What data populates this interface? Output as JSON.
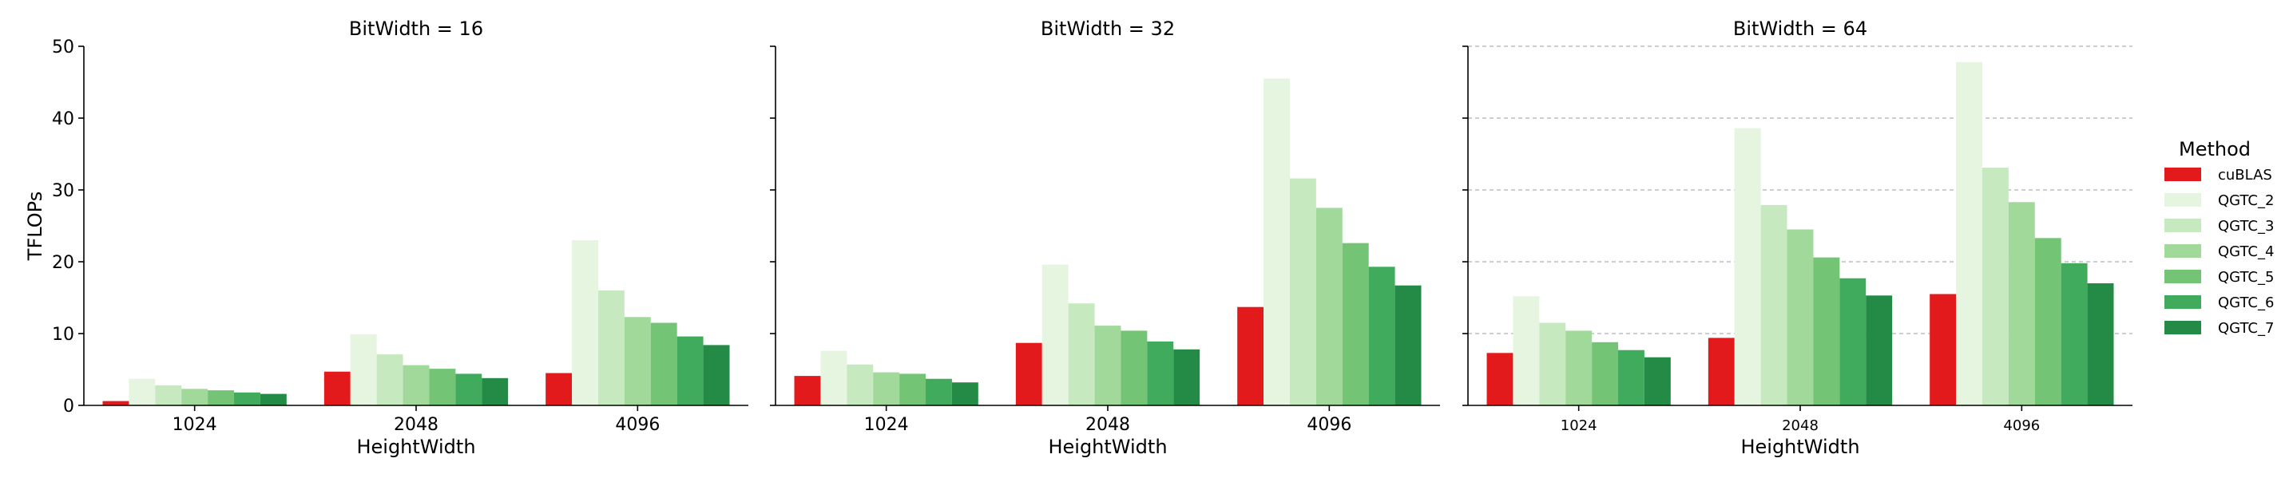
{
  "chart_data": {
    "type": "bar",
    "ylabel": "TFLOPs",
    "xlabel": "HeightWidth",
    "ylim": [
      0,
      50
    ],
    "yticks": [
      0,
      10,
      20,
      30,
      40,
      50
    ],
    "categories": [
      "1024",
      "2048",
      "4096"
    ],
    "legend": {
      "title": "Method",
      "position": "right",
      "entries": [
        "cuBLAS",
        "QGTC_2",
        "QGTC_3",
        "QGTC_4",
        "QGTC_5",
        "QGTC_6",
        "QGTC_7"
      ]
    },
    "colors": {
      "cuBLAS": "#e31a1c",
      "QGTC_2": "#e5f5e0",
      "QGTC_3": "#c7e9c0",
      "QGTC_4": "#a1d99b",
      "QGTC_5": "#74c476",
      "QGTC_6": "#41ab5d",
      "QGTC_7": "#238b45"
    },
    "panels": [
      {
        "title": "BitWidth = 16",
        "grid": false,
        "series": [
          {
            "name": "cuBLAS",
            "values": [
              0.6,
              4.7,
              4.5
            ]
          },
          {
            "name": "QGTC_2",
            "values": [
              3.7,
              9.9,
              23.0
            ]
          },
          {
            "name": "QGTC_3",
            "values": [
              2.8,
              7.1,
              16.0
            ]
          },
          {
            "name": "QGTC_4",
            "values": [
              2.3,
              5.6,
              12.3
            ]
          },
          {
            "name": "QGTC_5",
            "values": [
              2.1,
              5.1,
              11.5
            ]
          },
          {
            "name": "QGTC_6",
            "values": [
              1.8,
              4.4,
              9.6
            ]
          },
          {
            "name": "QGTC_7",
            "values": [
              1.6,
              3.8,
              8.4
            ]
          }
        ]
      },
      {
        "title": "BitWidth = 32",
        "grid": false,
        "series": [
          {
            "name": "cuBLAS",
            "values": [
              4.1,
              8.7,
              13.7
            ]
          },
          {
            "name": "QGTC_2",
            "values": [
              7.6,
              19.6,
              45.5
            ]
          },
          {
            "name": "QGTC_3",
            "values": [
              5.7,
              14.2,
              31.6
            ]
          },
          {
            "name": "QGTC_4",
            "values": [
              4.6,
              11.1,
              27.5
            ]
          },
          {
            "name": "QGTC_5",
            "values": [
              4.4,
              10.4,
              22.6
            ]
          },
          {
            "name": "QGTC_6",
            "values": [
              3.7,
              8.9,
              19.3
            ]
          },
          {
            "name": "QGTC_7",
            "values": [
              3.2,
              7.8,
              16.7
            ]
          }
        ]
      },
      {
        "title": "BitWidth = 64",
        "grid": true,
        "series": [
          {
            "name": "cuBLAS",
            "values": [
              7.3,
              9.4,
              15.5
            ]
          },
          {
            "name": "QGTC_2",
            "values": [
              15.2,
              38.6,
              47.8
            ]
          },
          {
            "name": "QGTC_3",
            "values": [
              11.5,
              27.9,
              33.1
            ]
          },
          {
            "name": "QGTC_4",
            "values": [
              10.4,
              24.5,
              28.3
            ]
          },
          {
            "name": "QGTC_5",
            "values": [
              8.8,
              20.6,
              23.3
            ]
          },
          {
            "name": "QGTC_6",
            "values": [
              7.7,
              17.7,
              19.8
            ]
          },
          {
            "name": "QGTC_7",
            "values": [
              6.7,
              15.3,
              17.0
            ]
          }
        ]
      }
    ]
  }
}
